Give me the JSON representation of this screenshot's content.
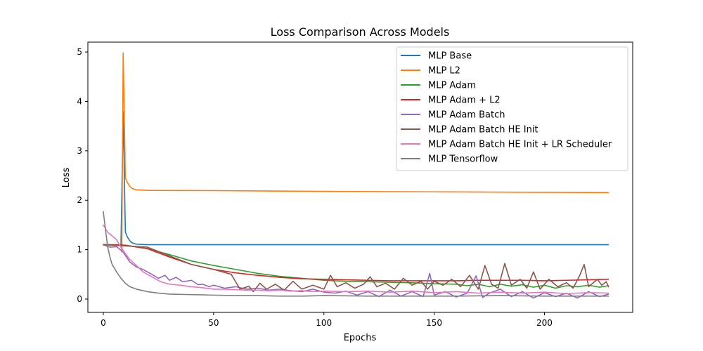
{
  "chart_data": {
    "type": "line",
    "title": "Loss Comparison Across Models",
    "xlabel": "Epochs",
    "ylabel": "Loss",
    "xlim": [
      -7,
      240
    ],
    "ylim": [
      -0.27,
      5.2
    ],
    "xticks": [
      0,
      50,
      100,
      150,
      200
    ],
    "yticks": [
      0,
      1,
      2,
      3,
      4,
      5
    ],
    "grid": false,
    "legend_position": "upper right",
    "series": [
      {
        "name": "MLP Base",
        "color": "#1f77b4",
        "points": [
          [
            0,
            1.1
          ],
          [
            7,
            1.1
          ],
          [
            8,
            1.09
          ],
          [
            9,
            3.8
          ],
          [
            10,
            1.35
          ],
          [
            11,
            1.25
          ],
          [
            12,
            1.18
          ],
          [
            13,
            1.14
          ],
          [
            15,
            1.11
          ],
          [
            20,
            1.1
          ],
          [
            229,
            1.1
          ]
        ]
      },
      {
        "name": "MLP L2",
        "color": "#ff7f0e",
        "points": [
          [
            0,
            1.1
          ],
          [
            5,
            1.1
          ],
          [
            8,
            1.08
          ],
          [
            8.4,
            0.95
          ],
          [
            9,
            4.98
          ],
          [
            10,
            2.45
          ],
          [
            11,
            2.35
          ],
          [
            12,
            2.28
          ],
          [
            13,
            2.24
          ],
          [
            15,
            2.21
          ],
          [
            20,
            2.2
          ],
          [
            50,
            2.195
          ],
          [
            100,
            2.18
          ],
          [
            150,
            2.17
          ],
          [
            200,
            2.16
          ],
          [
            229,
            2.155
          ]
        ]
      },
      {
        "name": "MLP Adam",
        "color": "#2ca02c",
        "points": [
          [
            0,
            1.1
          ],
          [
            10,
            1.09
          ],
          [
            20,
            1.02
          ],
          [
            30,
            0.9
          ],
          [
            40,
            0.77
          ],
          [
            50,
            0.68
          ],
          [
            60,
            0.6
          ],
          [
            70,
            0.52
          ],
          [
            80,
            0.46
          ],
          [
            90,
            0.42
          ],
          [
            100,
            0.38
          ],
          [
            110,
            0.36
          ],
          [
            120,
            0.35
          ],
          [
            130,
            0.34
          ],
          [
            140,
            0.33
          ],
          [
            150,
            0.31
          ],
          [
            160,
            0.3
          ],
          [
            165,
            0.27
          ],
          [
            170,
            0.3
          ],
          [
            175,
            0.25
          ],
          [
            180,
            0.3
          ],
          [
            185,
            0.26
          ],
          [
            190,
            0.29
          ],
          [
            195,
            0.24
          ],
          [
            200,
            0.28
          ],
          [
            205,
            0.22
          ],
          [
            210,
            0.27
          ],
          [
            215,
            0.25
          ],
          [
            220,
            0.28
          ],
          [
            225,
            0.24
          ],
          [
            229,
            0.27
          ]
        ]
      },
      {
        "name": "MLP Adam + L2",
        "color": "#d62728",
        "points": [
          [
            0,
            1.1
          ],
          [
            10,
            1.09
          ],
          [
            20,
            1.02
          ],
          [
            30,
            0.85
          ],
          [
            40,
            0.7
          ],
          [
            50,
            0.6
          ],
          [
            60,
            0.53
          ],
          [
            70,
            0.48
          ],
          [
            80,
            0.44
          ],
          [
            90,
            0.41
          ],
          [
            100,
            0.4
          ],
          [
            110,
            0.39
          ],
          [
            120,
            0.38
          ],
          [
            130,
            0.37
          ],
          [
            140,
            0.37
          ],
          [
            150,
            0.37
          ],
          [
            160,
            0.37
          ],
          [
            170,
            0.38
          ],
          [
            180,
            0.38
          ],
          [
            190,
            0.38
          ],
          [
            200,
            0.37
          ],
          [
            210,
            0.38
          ],
          [
            220,
            0.39
          ],
          [
            229,
            0.4
          ]
        ]
      },
      {
        "name": "MLP Adam Batch",
        "color": "#9467bd",
        "points": [
          [
            0,
            1.1
          ],
          [
            3,
            1.05
          ],
          [
            6,
            1.06
          ],
          [
            9,
            0.95
          ],
          [
            12,
            0.75
          ],
          [
            15,
            0.65
          ],
          [
            18,
            0.6
          ],
          [
            20,
            0.55
          ],
          [
            22,
            0.5
          ],
          [
            25,
            0.42
          ],
          [
            28,
            0.48
          ],
          [
            30,
            0.38
          ],
          [
            33,
            0.44
          ],
          [
            36,
            0.35
          ],
          [
            40,
            0.38
          ],
          [
            43,
            0.29
          ],
          [
            45,
            0.3
          ],
          [
            48,
            0.25
          ],
          [
            50,
            0.28
          ],
          [
            55,
            0.22
          ],
          [
            60,
            0.25
          ],
          [
            65,
            0.2
          ],
          [
            70,
            0.22
          ],
          [
            75,
            0.18
          ],
          [
            80,
            0.2
          ],
          [
            85,
            0.17
          ],
          [
            90,
            0.15
          ],
          [
            95,
            0.2
          ],
          [
            100,
            0.14
          ],
          [
            105,
            0.12
          ],
          [
            110,
            0.16
          ],
          [
            115,
            0.08
          ],
          [
            120,
            0.15
          ],
          [
            125,
            0.05
          ],
          [
            130,
            0.18
          ],
          [
            135,
            0.06
          ],
          [
            140,
            0.15
          ],
          [
            145,
            0.05
          ],
          [
            148,
            0.52
          ],
          [
            150,
            0.08
          ],
          [
            155,
            0.15
          ],
          [
            160,
            0.04
          ],
          [
            165,
            0.12
          ],
          [
            169,
            0.47
          ],
          [
            172,
            0.03
          ],
          [
            175,
            0.12
          ],
          [
            180,
            0.2
          ],
          [
            185,
            0.05
          ],
          [
            190,
            0.15
          ],
          [
            195,
            0.02
          ],
          [
            200,
            0.13
          ],
          [
            205,
            0.05
          ],
          [
            210,
            0.12
          ],
          [
            215,
            0.02
          ],
          [
            220,
            0.15
          ],
          [
            225,
            0.05
          ],
          [
            229,
            0.1
          ]
        ]
      },
      {
        "name": "MLP Adam Batch HE Init",
        "color": "#8c564b",
        "points": [
          [
            0,
            1.1
          ],
          [
            20,
            1.05
          ],
          [
            40,
            0.7
          ],
          [
            50,
            0.6
          ],
          [
            58,
            0.5
          ],
          [
            62,
            0.2
          ],
          [
            66,
            0.26
          ],
          [
            68,
            0.15
          ],
          [
            71,
            0.32
          ],
          [
            74,
            0.2
          ],
          [
            78,
            0.3
          ],
          [
            82,
            0.18
          ],
          [
            86,
            0.36
          ],
          [
            90,
            0.2
          ],
          [
            95,
            0.28
          ],
          [
            100,
            0.2
          ],
          [
            103,
            0.48
          ],
          [
            106,
            0.25
          ],
          [
            110,
            0.33
          ],
          [
            114,
            0.22
          ],
          [
            118,
            0.3
          ],
          [
            121,
            0.45
          ],
          [
            124,
            0.25
          ],
          [
            128,
            0.32
          ],
          [
            132,
            0.2
          ],
          [
            136,
            0.42
          ],
          [
            140,
            0.28
          ],
          [
            144,
            0.36
          ],
          [
            147,
            0.2
          ],
          [
            150,
            0.36
          ],
          [
            154,
            0.28
          ],
          [
            158,
            0.4
          ],
          [
            162,
            0.25
          ],
          [
            166,
            0.48
          ],
          [
            170,
            0.2
          ],
          [
            173,
            0.68
          ],
          [
            176,
            0.3
          ],
          [
            179,
            0.22
          ],
          [
            182,
            0.72
          ],
          [
            185,
            0.28
          ],
          [
            189,
            0.4
          ],
          [
            192,
            0.22
          ],
          [
            195,
            0.55
          ],
          [
            198,
            0.2
          ],
          [
            202,
            0.4
          ],
          [
            206,
            0.25
          ],
          [
            210,
            0.33
          ],
          [
            213,
            0.22
          ],
          [
            216,
            0.48
          ],
          [
            218,
            0.7
          ],
          [
            220,
            0.25
          ],
          [
            224,
            0.4
          ],
          [
            226,
            0.28
          ],
          [
            228,
            0.35
          ],
          [
            229,
            0.25
          ]
        ]
      },
      {
        "name": "MLP Adam Batch HE Init + LR Scheduler",
        "color": "#e377c2",
        "points": [
          [
            0,
            1.5
          ],
          [
            2,
            1.35
          ],
          [
            4,
            1.28
          ],
          [
            6,
            1.2
          ],
          [
            8,
            1.05
          ],
          [
            10,
            0.92
          ],
          [
            12,
            0.8
          ],
          [
            15,
            0.68
          ],
          [
            18,
            0.55
          ],
          [
            22,
            0.45
          ],
          [
            26,
            0.35
          ],
          [
            30,
            0.3
          ],
          [
            35,
            0.28
          ],
          [
            40,
            0.25
          ],
          [
            45,
            0.23
          ],
          [
            50,
            0.2
          ],
          [
            55,
            0.2
          ],
          [
            60,
            0.19
          ],
          [
            65,
            0.18
          ],
          [
            70,
            0.18
          ],
          [
            75,
            0.17
          ],
          [
            80,
            0.18
          ],
          [
            85,
            0.16
          ],
          [
            90,
            0.17
          ],
          [
            95,
            0.15
          ],
          [
            100,
            0.16
          ],
          [
            110,
            0.15
          ],
          [
            120,
            0.16
          ],
          [
            130,
            0.14
          ],
          [
            140,
            0.16
          ],
          [
            150,
            0.13
          ],
          [
            160,
            0.15
          ],
          [
            170,
            0.12
          ],
          [
            180,
            0.14
          ],
          [
            190,
            0.12
          ],
          [
            200,
            0.14
          ],
          [
            210,
            0.11
          ],
          [
            220,
            0.13
          ],
          [
            229,
            0.12
          ]
        ]
      },
      {
        "name": "MLP Tensorflow",
        "color": "#7f7f7f",
        "points": [
          [
            0,
            1.77
          ],
          [
            1,
            1.4
          ],
          [
            2,
            1.05
          ],
          [
            3,
            0.85
          ],
          [
            4,
            0.7
          ],
          [
            6,
            0.55
          ],
          [
            8,
            0.42
          ],
          [
            10,
            0.32
          ],
          [
            12,
            0.25
          ],
          [
            15,
            0.2
          ],
          [
            20,
            0.15
          ],
          [
            25,
            0.12
          ],
          [
            30,
            0.1
          ],
          [
            40,
            0.09
          ],
          [
            50,
            0.08
          ],
          [
            60,
            0.07
          ],
          [
            70,
            0.07
          ],
          [
            80,
            0.06
          ],
          [
            90,
            0.06
          ],
          [
            100,
            0.07
          ],
          [
            120,
            0.06
          ],
          [
            140,
            0.06
          ],
          [
            160,
            0.06
          ],
          [
            180,
            0.07
          ],
          [
            200,
            0.06
          ],
          [
            229,
            0.06
          ]
        ]
      }
    ]
  }
}
